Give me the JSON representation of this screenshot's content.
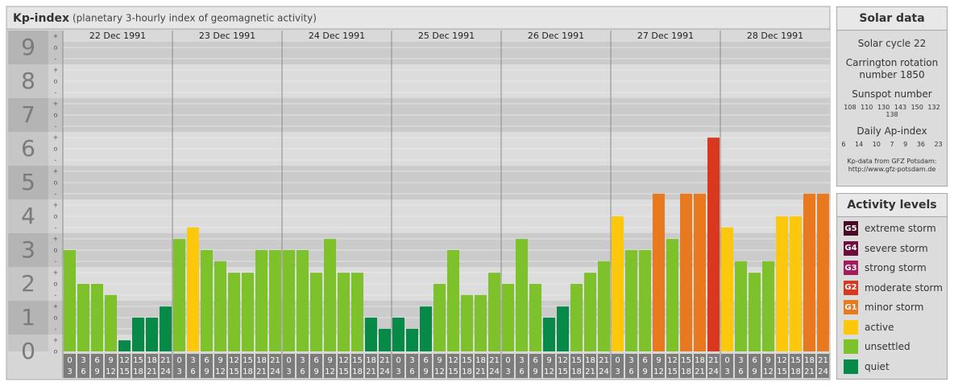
{
  "chart_data": {
    "type": "bar",
    "title": "Kp-index",
    "subtitle": "(planetary 3-hourly index of geomagnetic activity)",
    "ylim": [
      0,
      9.5
    ],
    "yticks": [
      0,
      1,
      2,
      3,
      4,
      5,
      6,
      7,
      8,
      9
    ],
    "third_labels": [
      "-",
      "o",
      "+"
    ],
    "grid": true,
    "hours": [
      [
        "0",
        "3"
      ],
      [
        "3",
        "6"
      ],
      [
        "6",
        "9"
      ],
      [
        "9",
        "12"
      ],
      [
        "12",
        "15"
      ],
      [
        "15",
        "18"
      ],
      [
        "18",
        "21"
      ],
      [
        "21",
        "24"
      ]
    ],
    "days": [
      {
        "date": "22 Dec 1991",
        "values": [
          3,
          2,
          2,
          1.67,
          0.33,
          1,
          1,
          1.33
        ],
        "colors": [
          "#7dc12b",
          "#7dc12b",
          "#7dc12b",
          "#7dc12b",
          "#078a47",
          "#078a47",
          "#078a47",
          "#078a47"
        ]
      },
      {
        "date": "23 Dec 1991",
        "values": [
          3.33,
          3.67,
          3,
          2.67,
          2.33,
          2.33,
          3,
          3
        ],
        "colors": [
          "#7dc12b",
          "#fdc70c",
          "#7dc12b",
          "#7dc12b",
          "#7dc12b",
          "#7dc12b",
          "#7dc12b",
          "#7dc12b"
        ]
      },
      {
        "date": "24 Dec 1991",
        "values": [
          3,
          3,
          2.33,
          3.33,
          2.33,
          2.33,
          1,
          0.67
        ],
        "colors": [
          "#7dc12b",
          "#7dc12b",
          "#7dc12b",
          "#7dc12b",
          "#7dc12b",
          "#7dc12b",
          "#078a47",
          "#078a47"
        ]
      },
      {
        "date": "25 Dec 1991",
        "values": [
          1,
          0.67,
          1.33,
          2,
          3,
          1.67,
          1.67,
          2.33
        ],
        "colors": [
          "#078a47",
          "#078a47",
          "#078a47",
          "#7dc12b",
          "#7dc12b",
          "#7dc12b",
          "#7dc12b",
          "#7dc12b"
        ]
      },
      {
        "date": "26 Dec 1991",
        "values": [
          2,
          3.33,
          2,
          1,
          1.33,
          2,
          2.33,
          2.67
        ],
        "colors": [
          "#7dc12b",
          "#7dc12b",
          "#7dc12b",
          "#078a47",
          "#078a47",
          "#7dc12b",
          "#7dc12b",
          "#7dc12b"
        ]
      },
      {
        "date": "27 Dec 1991",
        "values": [
          4,
          3,
          3,
          4.67,
          3.33,
          4.67,
          4.67,
          6.33
        ],
        "colors": [
          "#fdc70c",
          "#7dc12b",
          "#7dc12b",
          "#e8791e",
          "#7dc12b",
          "#e8791e",
          "#e8791e",
          "#d9381e"
        ]
      },
      {
        "date": "28 Dec 1991",
        "values": [
          3.67,
          2.67,
          2.33,
          2.67,
          4,
          4,
          4.67,
          4.67
        ],
        "colors": [
          "#fdc70c",
          "#7dc12b",
          "#7dc12b",
          "#7dc12b",
          "#fdc70c",
          "#fdc70c",
          "#e8791e",
          "#e8791e"
        ]
      }
    ]
  },
  "solar_data": {
    "title": "Solar data",
    "cycle": "Solar cycle 22",
    "rotation": "Carrington rotation number 1850",
    "sunspot_title": "Sunspot number",
    "sunspot_numbers": [
      108,
      110,
      130,
      143,
      150,
      132,
      138
    ],
    "ap_title": "Daily Ap-index",
    "ap_values": [
      6,
      14,
      10,
      7,
      9,
      36,
      23
    ],
    "source": "Kp-data from GFZ Potsdam:",
    "url": "http://www.gfz-potsdam.de"
  },
  "activity_levels": {
    "title": "Activity levels",
    "levels": [
      {
        "badge": "G5",
        "label": "extreme storm",
        "color": "#4a0a26"
      },
      {
        "badge": "G4",
        "label": "severe storm",
        "color": "#6e0d3c"
      },
      {
        "badge": "G3",
        "label": "strong storm",
        "color": "#a41a5c"
      },
      {
        "badge": "G2",
        "label": "moderate storm",
        "color": "#d9381e"
      },
      {
        "badge": "G1",
        "label": "minor storm",
        "color": "#e8791e"
      },
      {
        "label": "active",
        "color": "#fdc70c"
      },
      {
        "label": "unsettled",
        "color": "#7dc12b"
      },
      {
        "label": "quiet",
        "color": "#078a47"
      }
    ]
  }
}
